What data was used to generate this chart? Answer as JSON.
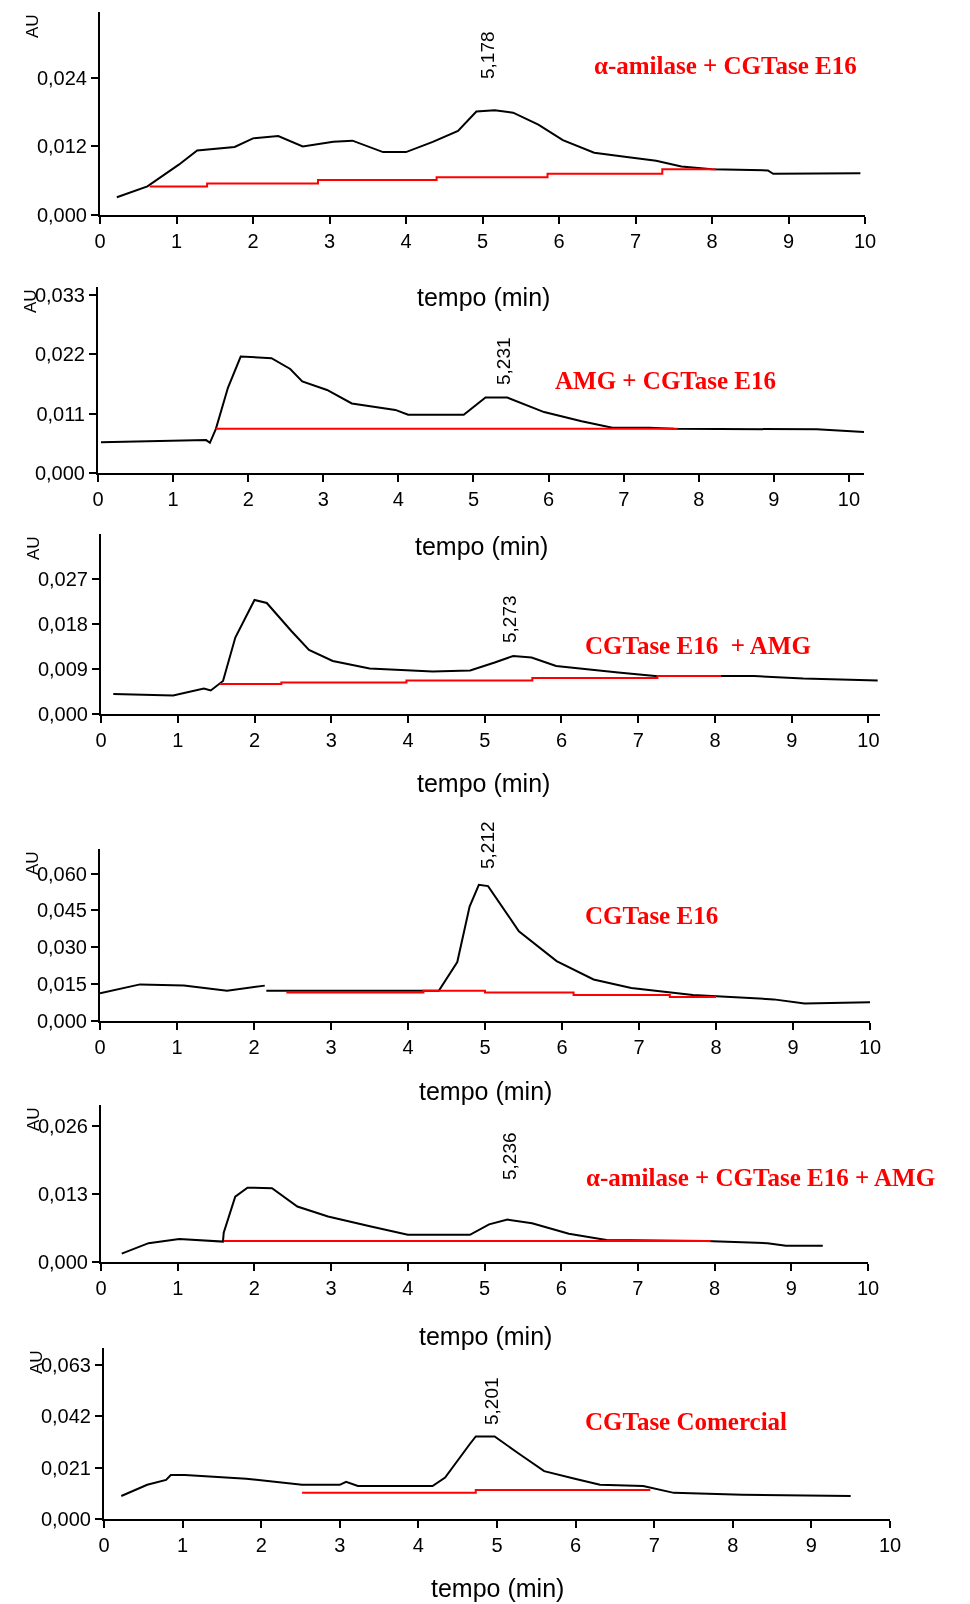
{
  "chart_data": [
    {
      "type": "line",
      "title": "α-amilase + CGTase E16",
      "xlabel": "tempo (min)",
      "ylabel": "AU",
      "annotations": [
        "5,178"
      ],
      "xlim": [
        0,
        10
      ],
      "ylim": [
        0,
        0.0355
      ],
      "xticks": [
        0,
        1,
        2,
        3,
        4,
        5,
        6,
        7,
        8,
        9,
        10
      ],
      "yticks": [
        {
          "value": 0,
          "label": "0,000"
        },
        {
          "value": 0.012,
          "label": "0,012"
        },
        {
          "value": 0.024,
          "label": "0,024"
        }
      ],
      "series": [
        {
          "color": "#000000",
          "x": [
            0.22,
            0.62,
            1.03,
            1.27,
            1.76,
            2.0,
            2.33,
            2.65,
            3.05,
            3.3,
            3.7,
            4.0,
            4.35,
            4.68,
            4.92,
            5.16,
            5.4,
            5.73,
            6.05,
            6.46,
            6.86,
            7.27,
            7.6,
            8.0,
            8.73,
            8.8,
            9.94
          ],
          "values": [
            0.0031,
            0.005,
            0.0088,
            0.0113,
            0.0119,
            0.0134,
            0.0138,
            0.012,
            0.0128,
            0.013,
            0.011,
            0.011,
            0.0128,
            0.0147,
            0.0181,
            0.0183,
            0.0179,
            0.0158,
            0.0131,
            0.0109,
            0.0102,
            0.0095,
            0.0085,
            0.008,
            0.0078,
            0.0072,
            0.0073
          ]
        },
        {
          "type": "step",
          "color": "#ff0000",
          "x": [
            0.65,
            1.4,
            2.85,
            4.4,
            5.85,
            7.35,
            8.05
          ],
          "values": [
            0.005,
            0.0055,
            0.0061,
            0.0066,
            0.0072,
            0.008,
            0.008
          ]
        }
      ]
    },
    {
      "type": "line",
      "title": "AMG + CGTase E16",
      "xlabel": "tempo (min)",
      "ylabel": "AU",
      "annotations": [
        "5,231"
      ],
      "xlim": [
        0,
        10.2
      ],
      "ylim": [
        0,
        0.0345
      ],
      "xticks": [
        0,
        1,
        2,
        3,
        4,
        5,
        6,
        7,
        8,
        9,
        10
      ],
      "yticks": [
        {
          "value": 0,
          "label": "0,000"
        },
        {
          "value": 0.011,
          "label": "0,011"
        },
        {
          "value": 0.022,
          "label": "0,022"
        },
        {
          "value": 0.033,
          "label": "0,033"
        }
      ],
      "series": [
        {
          "color": "#000000",
          "x": [
            0.04,
            1.44,
            1.49,
            1.57,
            1.73,
            1.9,
            2.31,
            2.56,
            2.72,
            3.05,
            3.38,
            3.96,
            4.13,
            4.87,
            5.16,
            5.45,
            5.94,
            6.44,
            6.85,
            7.34,
            7.67,
            9.57,
            10.2
          ],
          "values": [
            0.0057,
            0.0061,
            0.0056,
            0.0082,
            0.0158,
            0.0216,
            0.0213,
            0.0193,
            0.017,
            0.0154,
            0.0129,
            0.0117,
            0.0108,
            0.0108,
            0.014,
            0.014,
            0.0113,
            0.0096,
            0.0084,
            0.0084,
            0.0082,
            0.0081,
            0.0076
          ]
        },
        {
          "type": "step",
          "color": "#ff0000",
          "x": [
            1.57,
            7.72
          ],
          "values": [
            0.0082,
            0.0082
          ]
        }
      ]
    },
    {
      "type": "line",
      "title": "CGTase E16  + AMG",
      "xlabel": "tempo (min)",
      "ylabel": "AU",
      "annotations": [
        "5,273"
      ],
      "xlim": [
        0,
        10.15
      ],
      "ylim": [
        0,
        0.036
      ],
      "xticks": [
        0,
        1,
        2,
        3,
        4,
        5,
        6,
        7,
        8,
        9,
        10
      ],
      "yticks": [
        {
          "value": 0,
          "label": "0,000"
        },
        {
          "value": 0.009,
          "label": "0,009"
        },
        {
          "value": 0.018,
          "label": "0,018"
        },
        {
          "value": 0.027,
          "label": "0,027"
        }
      ],
      "series": [
        {
          "color": "#000000",
          "x": [
            0.16,
            0.94,
            1.34,
            1.43,
            1.59,
            1.75,
            2.0,
            2.16,
            2.48,
            2.71,
            3.02,
            3.5,
            4.32,
            4.81,
            5.13,
            5.37,
            5.61,
            5.93,
            6.74,
            7.22,
            8.51,
            9.15,
            10.12
          ],
          "values": [
            0.004,
            0.0037,
            0.0051,
            0.0047,
            0.0066,
            0.0153,
            0.0228,
            0.0222,
            0.0166,
            0.0128,
            0.0106,
            0.0091,
            0.0085,
            0.0087,
            0.0103,
            0.0116,
            0.0113,
            0.0096,
            0.0083,
            0.0076,
            0.0076,
            0.0071,
            0.0067
          ]
        },
        {
          "type": "step",
          "color": "#ff0000",
          "x": [
            1.55,
            2.35,
            3.98,
            5.62,
            7.25,
            8.08
          ],
          "values": [
            0.006,
            0.0063,
            0.0067,
            0.0072,
            0.0076,
            0.0076
          ]
        }
      ]
    },
    {
      "type": "line",
      "title": "CGTase E16",
      "xlabel": "tempo (min)",
      "ylabel": "AU",
      "annotations": [
        "5,212"
      ],
      "xlim": [
        0,
        10
      ],
      "ylim": [
        0,
        0.07
      ],
      "xticks": [
        0,
        1,
        2,
        3,
        4,
        5,
        6,
        7,
        8,
        9,
        10
      ],
      "yticks": [
        {
          "value": 0,
          "label": "0,000"
        },
        {
          "value": 0.015,
          "label": "0,015"
        },
        {
          "value": 0.03,
          "label": "0,030"
        },
        {
          "value": 0.045,
          "label": "0,045"
        },
        {
          "value": 0.06,
          "label": "0,060"
        }
      ],
      "series": [
        {
          "color": "#000000",
          "x": [
            0,
            0.52,
            1.09,
            1.65,
            2.14,
            2.15,
            2.16,
            4.4,
            4.64,
            4.8,
            4.92,
            5.04,
            5.44,
            5.93,
            6.41,
            6.9,
            7.7,
            8.75,
            9.15,
            10.0
          ],
          "values": [
            0.0113,
            0.0149,
            0.0144,
            0.0123,
            0.0144,
            null,
            0.0123,
            0.0123,
            0.024,
            0.0466,
            0.0554,
            0.0549,
            0.0365,
            0.0244,
            0.0169,
            0.0134,
            0.0106,
            0.0088,
            0.0071,
            0.0076
          ]
        },
        {
          "type": "step",
          "color": "#ff0000",
          "x": [
            2.42,
            4.2,
            5.0,
            6.15,
            7.4,
            8.0
          ],
          "values": [
            0.0116,
            0.0123,
            0.0116,
            0.0106,
            0.0098,
            0.0098
          ]
        }
      ]
    },
    {
      "type": "line",
      "title": "α-amilase + CGTase E16 + AMG",
      "xlabel": "tempo (min)",
      "ylabel": "AU",
      "annotations": [
        "5,236"
      ],
      "xlim": [
        0,
        10
      ],
      "ylim": [
        0,
        0.03
      ],
      "xticks": [
        0,
        1,
        2,
        3,
        4,
        5,
        6,
        7,
        8,
        9,
        10
      ],
      "yticks": [
        {
          "value": 0,
          "label": "0,000"
        },
        {
          "value": 0.013,
          "label": "0,013"
        },
        {
          "value": 0.026,
          "label": "0,026"
        }
      ],
      "series": [
        {
          "color": "#000000",
          "x": [
            0.27,
            0.62,
            1.02,
            1.59,
            1.6,
            1.75,
            1.91,
            2.23,
            2.56,
            2.96,
            3.52,
            4.0,
            4.81,
            5.06,
            5.3,
            5.62,
            6.1,
            6.59,
            7.88,
            8.69,
            8.93,
            9.41
          ],
          "values": [
            0.0016,
            0.0036,
            0.0044,
            0.0039,
            0.0056,
            0.0125,
            0.0142,
            0.0141,
            0.0106,
            0.0087,
            0.0068,
            0.0052,
            0.0052,
            0.0072,
            0.0081,
            0.0074,
            0.0054,
            0.0042,
            0.004,
            0.0036,
            0.0031,
            0.0031
          ]
        },
        {
          "type": "step",
          "color": "#ff0000",
          "x": [
            1.6,
            7.95
          ],
          "values": [
            0.004,
            0.004
          ]
        }
      ]
    },
    {
      "type": "line",
      "title": "CGTase Comercial",
      "xlabel": "tempo (min)",
      "ylabel": "AU",
      "annotations": [
        "5,201"
      ],
      "xlim": [
        0,
        10
      ],
      "ylim": [
        0,
        0.07
      ],
      "xticks": [
        0,
        1,
        2,
        3,
        4,
        5,
        6,
        7,
        8,
        9,
        10
      ],
      "yticks": [
        {
          "value": 0,
          "label": "0,000"
        },
        {
          "value": 0.021,
          "label": "0,021"
        },
        {
          "value": 0.042,
          "label": "0,042"
        },
        {
          "value": 0.063,
          "label": "0,063"
        }
      ],
      "series": [
        {
          "color": "#000000",
          "x": [
            0.22,
            0.55,
            0.79,
            0.85,
            1.03,
            1.81,
            2.52,
            3.0,
            3.08,
            3.23,
            4.18,
            4.34,
            4.65,
            4.73,
            4.97,
            5.28,
            5.6,
            5.99,
            6.31,
            6.86,
            7.25,
            8.12,
            9.5
          ],
          "values": [
            0.0094,
            0.014,
            0.016,
            0.018,
            0.018,
            0.0165,
            0.014,
            0.014,
            0.0152,
            0.0135,
            0.0135,
            0.017,
            0.0305,
            0.0338,
            0.0338,
            0.0267,
            0.0196,
            0.0165,
            0.014,
            0.0135,
            0.0107,
            0.0099,
            0.0094
          ]
        },
        {
          "type": "step",
          "color": "#ff0000",
          "x": [
            2.52,
            4.73,
            6.95
          ],
          "values": [
            0.0107,
            0.0119,
            0.0119
          ]
        }
      ]
    }
  ]
}
